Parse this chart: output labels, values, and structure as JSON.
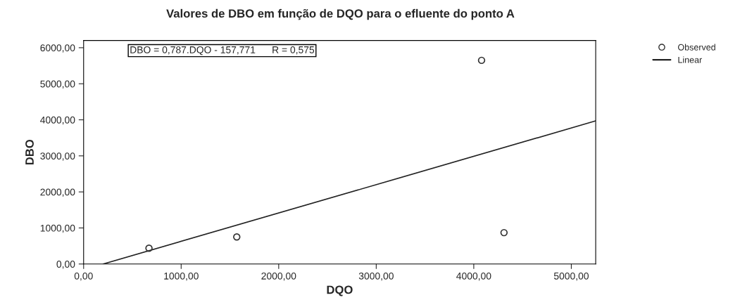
{
  "chart_data": {
    "type": "scatter",
    "title": "Valores de DBO em função de DQO para o efluente do ponto A",
    "xlabel": "DQO",
    "ylabel": "DBO",
    "annotations": [
      "DBO = 0,787.DQO - 157,771      R = 0,575"
    ],
    "series": [
      {
        "name": "Observed",
        "color": "#333333",
        "marker": "circle",
        "x": [
          670,
          1570,
          4080,
          4310
        ],
        "values": [
          440,
          750,
          5650,
          870
        ]
      },
      {
        "name": "Linear",
        "type": "line",
        "color": "#222222",
        "marker": "none",
        "line_style": "solid",
        "x": [
          200.5,
          5250
        ],
        "values": [
          0,
          3970
        ]
      }
    ],
    "xlim": [
      0,
      5250
    ],
    "ylim": [
      0,
      6200
    ],
    "xticks": [
      {
        "value": 0,
        "label": "0,00"
      },
      {
        "value": 1000,
        "label": "1000,00"
      },
      {
        "value": 2000,
        "label": "2000,00"
      },
      {
        "value": 3000,
        "label": "3000,00"
      },
      {
        "value": 4000,
        "label": "4000,00"
      },
      {
        "value": 5000,
        "label": "5000,00"
      }
    ],
    "yticks": [
      {
        "value": 0,
        "label": "0,00"
      },
      {
        "value": 1000,
        "label": "1000,00"
      },
      {
        "value": 2000,
        "label": "2000,00"
      },
      {
        "value": 3000,
        "label": "3000,00"
      },
      {
        "value": 4000,
        "label": "4000,00"
      },
      {
        "value": 5000,
        "label": "5000,00"
      },
      {
        "value": 6000,
        "label": "6000,00"
      }
    ],
    "grid": false,
    "legend": "top right"
  }
}
